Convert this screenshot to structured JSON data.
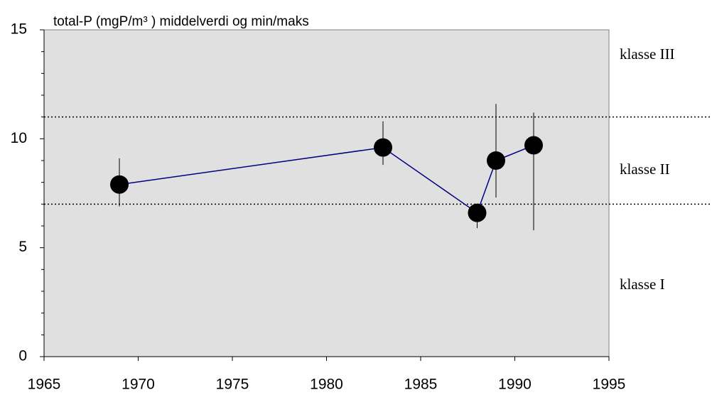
{
  "chart_data": {
    "type": "line",
    "title": "total-P (mgP/m³ )  middelverdi og min/maks",
    "xlim": [
      1965,
      1995
    ],
    "xticks": [
      1965,
      1970,
      1975,
      1980,
      1985,
      1990,
      1995
    ],
    "ylim": [
      0,
      15
    ],
    "yticks": [
      0,
      5,
      10,
      15
    ],
    "y_minor_ticks": [
      1,
      2,
      3,
      4,
      6,
      7,
      8,
      9,
      11,
      12,
      13,
      14
    ],
    "series": [
      {
        "color": "#000080",
        "marker_color": "#000000",
        "x": [
          1969,
          1983,
          1988,
          1989,
          1991
        ],
        "values": [
          7.9,
          9.6,
          6.6,
          9.0,
          9.7
        ],
        "min": [
          6.9,
          8.8,
          5.9,
          7.3,
          5.8
        ],
        "max": [
          9.1,
          10.8,
          6.9,
          11.6,
          11.2
        ]
      }
    ],
    "class_boundaries": [
      7,
      11
    ],
    "class_labels": [
      "klasse I",
      "klasse II",
      "klasse III"
    ],
    "plot_background": "#e0e0e0"
  }
}
